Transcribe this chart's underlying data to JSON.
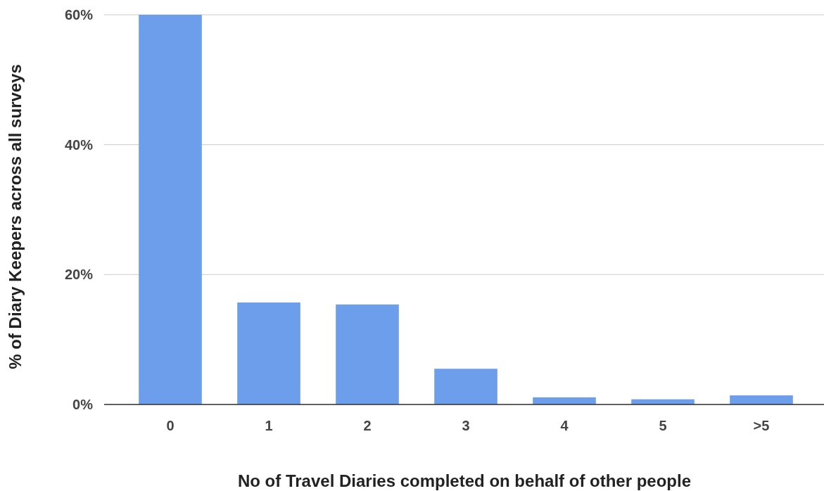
{
  "chart_data": {
    "type": "bar",
    "xlabel": "No of Travel Diaries completed on behalf of other people",
    "ylabel": "% of Diary Keepers across all surveys",
    "categories": [
      "0",
      "1",
      "2",
      "3",
      "4",
      "5",
      ">5"
    ],
    "values": [
      60,
      15.7,
      15.4,
      5.5,
      1.1,
      0.8,
      1.4
    ],
    "color": "#6d9eeb",
    "ylim": [
      0,
      60
    ],
    "yticks": [
      {
        "value": 0,
        "label": "0%"
      },
      {
        "value": 20,
        "label": "20%"
      },
      {
        "value": 40,
        "label": "40%"
      },
      {
        "value": 60,
        "label": "60%"
      }
    ],
    "grid": "y"
  }
}
